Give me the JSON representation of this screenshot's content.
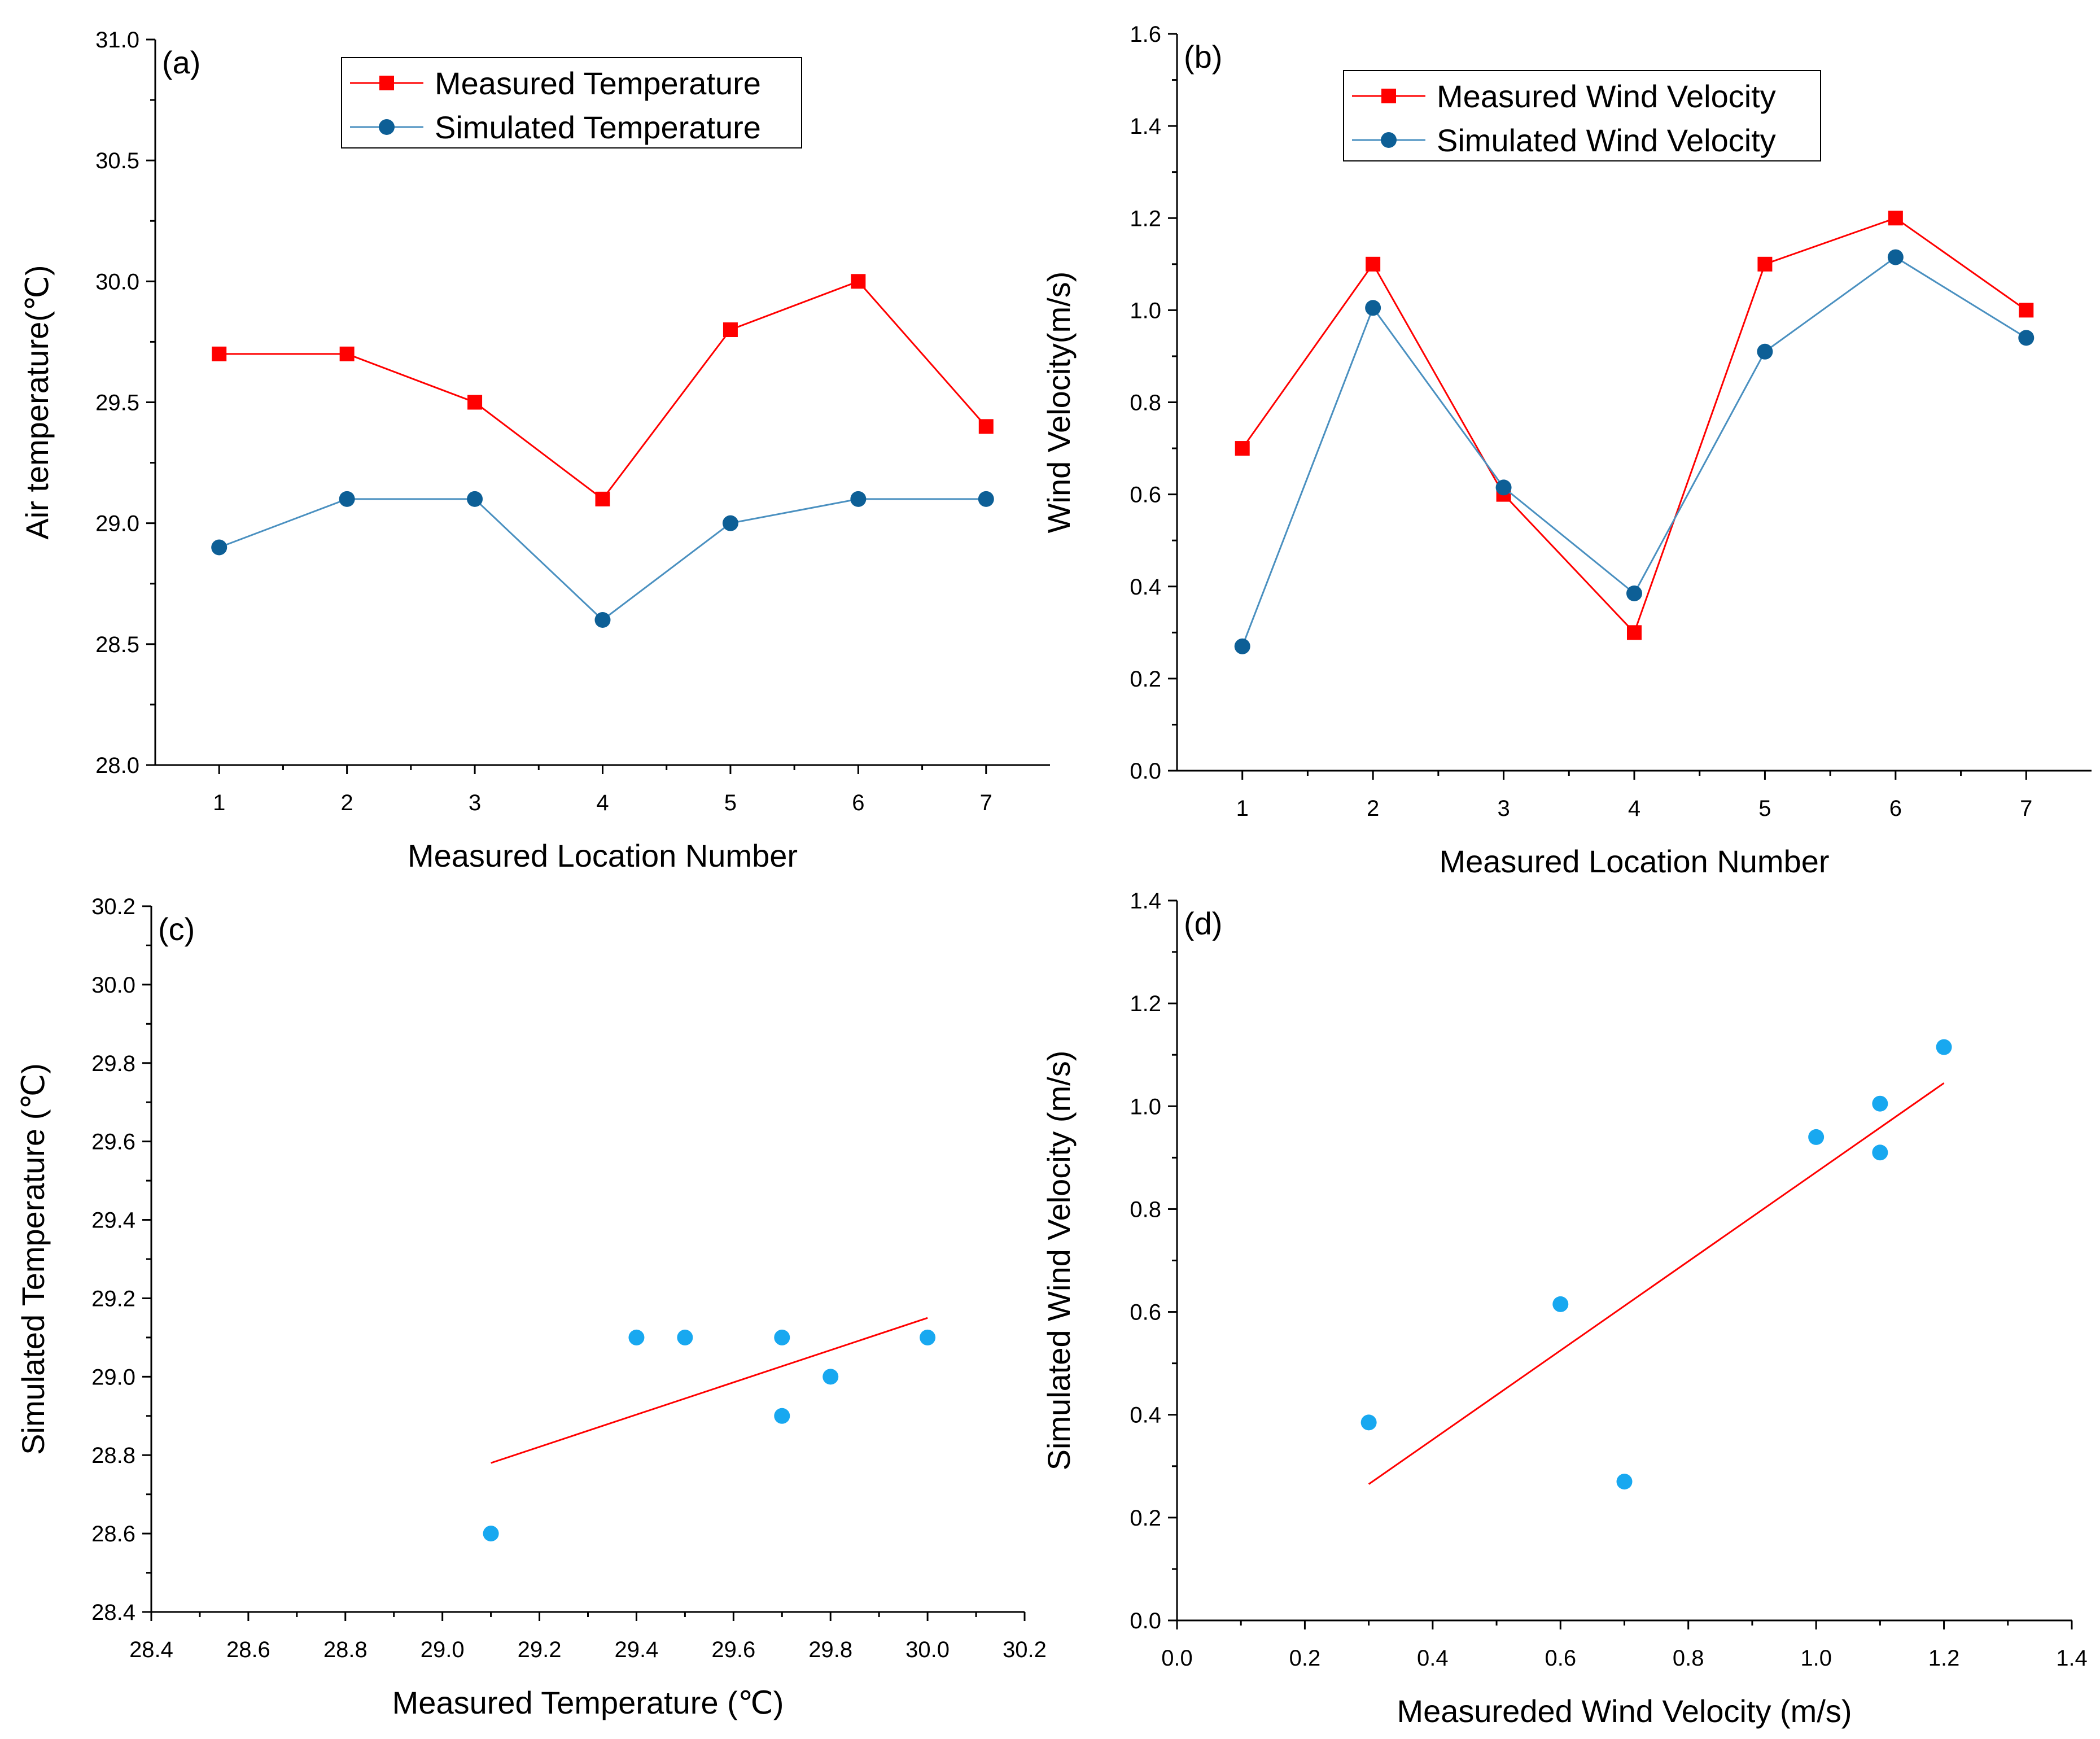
{
  "colors": {
    "measured": "#ff0000",
    "simulated": "#0d5f96",
    "simulated_line": "#4a90c0",
    "scatter": "#18a8f0",
    "fit": "#ff0000"
  },
  "chart_data": [
    {
      "id": "a",
      "type": "line",
      "panel_label": "(a)",
      "xlabel": "Measured Location Number",
      "ylabel": "Air temperature(℃)",
      "categories": [
        "1",
        "2",
        "3",
        "4",
        "5",
        "6",
        "7"
      ],
      "xlim": [
        0.5,
        7.5
      ],
      "ylim": [
        28.0,
        31.0
      ],
      "yticks": [
        "28.0",
        "28.5",
        "29.0",
        "29.5",
        "30.0",
        "30.5",
        "31.0"
      ],
      "legend_position": "top-right",
      "series": [
        {
          "name": "Measured Temperature",
          "marker": "square",
          "values": [
            29.7,
            29.7,
            29.5,
            29.1,
            29.8,
            30.0,
            29.4
          ]
        },
        {
          "name": "Simulated Temperature",
          "marker": "circle",
          "values": [
            28.9,
            29.1,
            29.1,
            28.6,
            29.0,
            29.1,
            29.1
          ]
        }
      ]
    },
    {
      "id": "b",
      "type": "line",
      "panel_label": "(b)",
      "xlabel": "Measured Location Number",
      "ylabel": "Wind Velocity(m/s)",
      "categories": [
        "1",
        "2",
        "3",
        "4",
        "5",
        "6",
        "7"
      ],
      "xlim": [
        0.5,
        7.5
      ],
      "ylim": [
        0.0,
        1.6
      ],
      "yticks": [
        "0.0",
        "0.2",
        "0.4",
        "0.6",
        "0.8",
        "1.0",
        "1.2",
        "1.4",
        "1.6"
      ],
      "legend_position": "top-right",
      "series": [
        {
          "name": "Measured Wind Velocity",
          "marker": "square",
          "values": [
            0.7,
            1.1,
            0.6,
            0.3,
            1.1,
            1.2,
            1.0
          ]
        },
        {
          "name": "Simulated Wind Velocity",
          "marker": "circle",
          "values": [
            0.27,
            1.005,
            0.615,
            0.385,
            0.91,
            1.115,
            0.94
          ]
        }
      ]
    },
    {
      "id": "c",
      "type": "scatter",
      "panel_label": "(c)",
      "xlabel": "Measured Temperature (℃)",
      "ylabel": "Simulated Temperature (℃)",
      "xlim": [
        28.4,
        30.2
      ],
      "ylim": [
        28.4,
        30.2
      ],
      "xticks": [
        "28.4",
        "28.6",
        "28.8",
        "29.0",
        "29.2",
        "29.4",
        "29.6",
        "29.8",
        "30.0",
        "30.2"
      ],
      "yticks": [
        "28.4",
        "28.6",
        "28.8",
        "29.0",
        "29.2",
        "29.4",
        "29.6",
        "29.8",
        "30.0",
        "30.2"
      ],
      "points": [
        {
          "x": 29.7,
          "y": 28.9
        },
        {
          "x": 29.7,
          "y": 29.1
        },
        {
          "x": 29.5,
          "y": 29.1
        },
        {
          "x": 29.1,
          "y": 28.6
        },
        {
          "x": 29.8,
          "y": 29.0
        },
        {
          "x": 30.0,
          "y": 29.1
        },
        {
          "x": 29.4,
          "y": 29.1
        }
      ],
      "fit_line": {
        "x": [
          29.1,
          30.0
        ],
        "y": [
          28.78,
          29.15
        ]
      }
    },
    {
      "id": "d",
      "type": "scatter",
      "panel_label": "(d)",
      "xlabel": "Measureded Wind Velocity (m/s)",
      "ylabel": "Simulated Wind Velocity (m/s)",
      "xlim": [
        0.0,
        1.4
      ],
      "ylim": [
        0.0,
        1.4
      ],
      "xticks": [
        "0.0",
        "0.2",
        "0.4",
        "0.6",
        "0.8",
        "1.0",
        "1.2",
        "1.4"
      ],
      "yticks": [
        "0.0",
        "0.2",
        "0.4",
        "0.6",
        "0.8",
        "1.0",
        "1.2",
        "1.4"
      ],
      "points": [
        {
          "x": 0.7,
          "y": 0.27
        },
        {
          "x": 1.1,
          "y": 1.005
        },
        {
          "x": 0.6,
          "y": 0.615
        },
        {
          "x": 0.3,
          "y": 0.385
        },
        {
          "x": 1.1,
          "y": 0.91
        },
        {
          "x": 1.2,
          "y": 1.115
        },
        {
          "x": 1.0,
          "y": 0.94
        }
      ],
      "fit_line": {
        "x": [
          0.3,
          1.2
        ],
        "y": [
          0.265,
          1.045
        ]
      }
    }
  ]
}
